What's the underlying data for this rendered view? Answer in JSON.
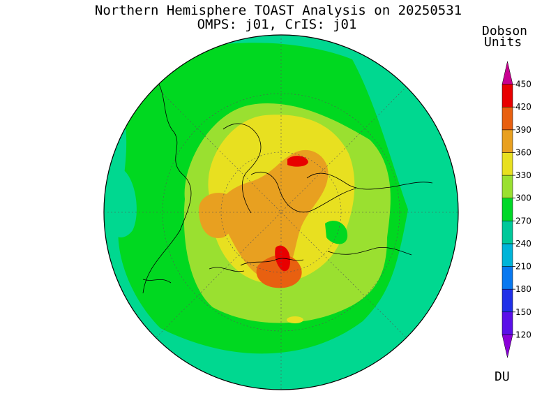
{
  "title": {
    "line1": "Northern Hemisphere TOAST Analysis on 20250531",
    "line2": "OMPS: j01, CrIS: j01"
  },
  "legend": {
    "units_line1": "Dobson",
    "units_line2": "Units",
    "bottom_label": "DU",
    "ticks": [
      "120",
      "150",
      "180",
      "210",
      "240",
      "270",
      "300",
      "330",
      "360",
      "390",
      "420",
      "450"
    ],
    "colors": [
      "#8a00d8",
      "#5a10e8",
      "#2030e8",
      "#0878f0",
      "#00b4d8",
      "#00c89a",
      "#00d828",
      "#9ae030",
      "#e8e020",
      "#e8a020",
      "#e86010",
      "#e80000",
      "#c80090"
    ]
  },
  "map": {
    "projection": "north polar stereographic",
    "region": "Northern Hemisphere",
    "field": "total column ozone"
  }
}
